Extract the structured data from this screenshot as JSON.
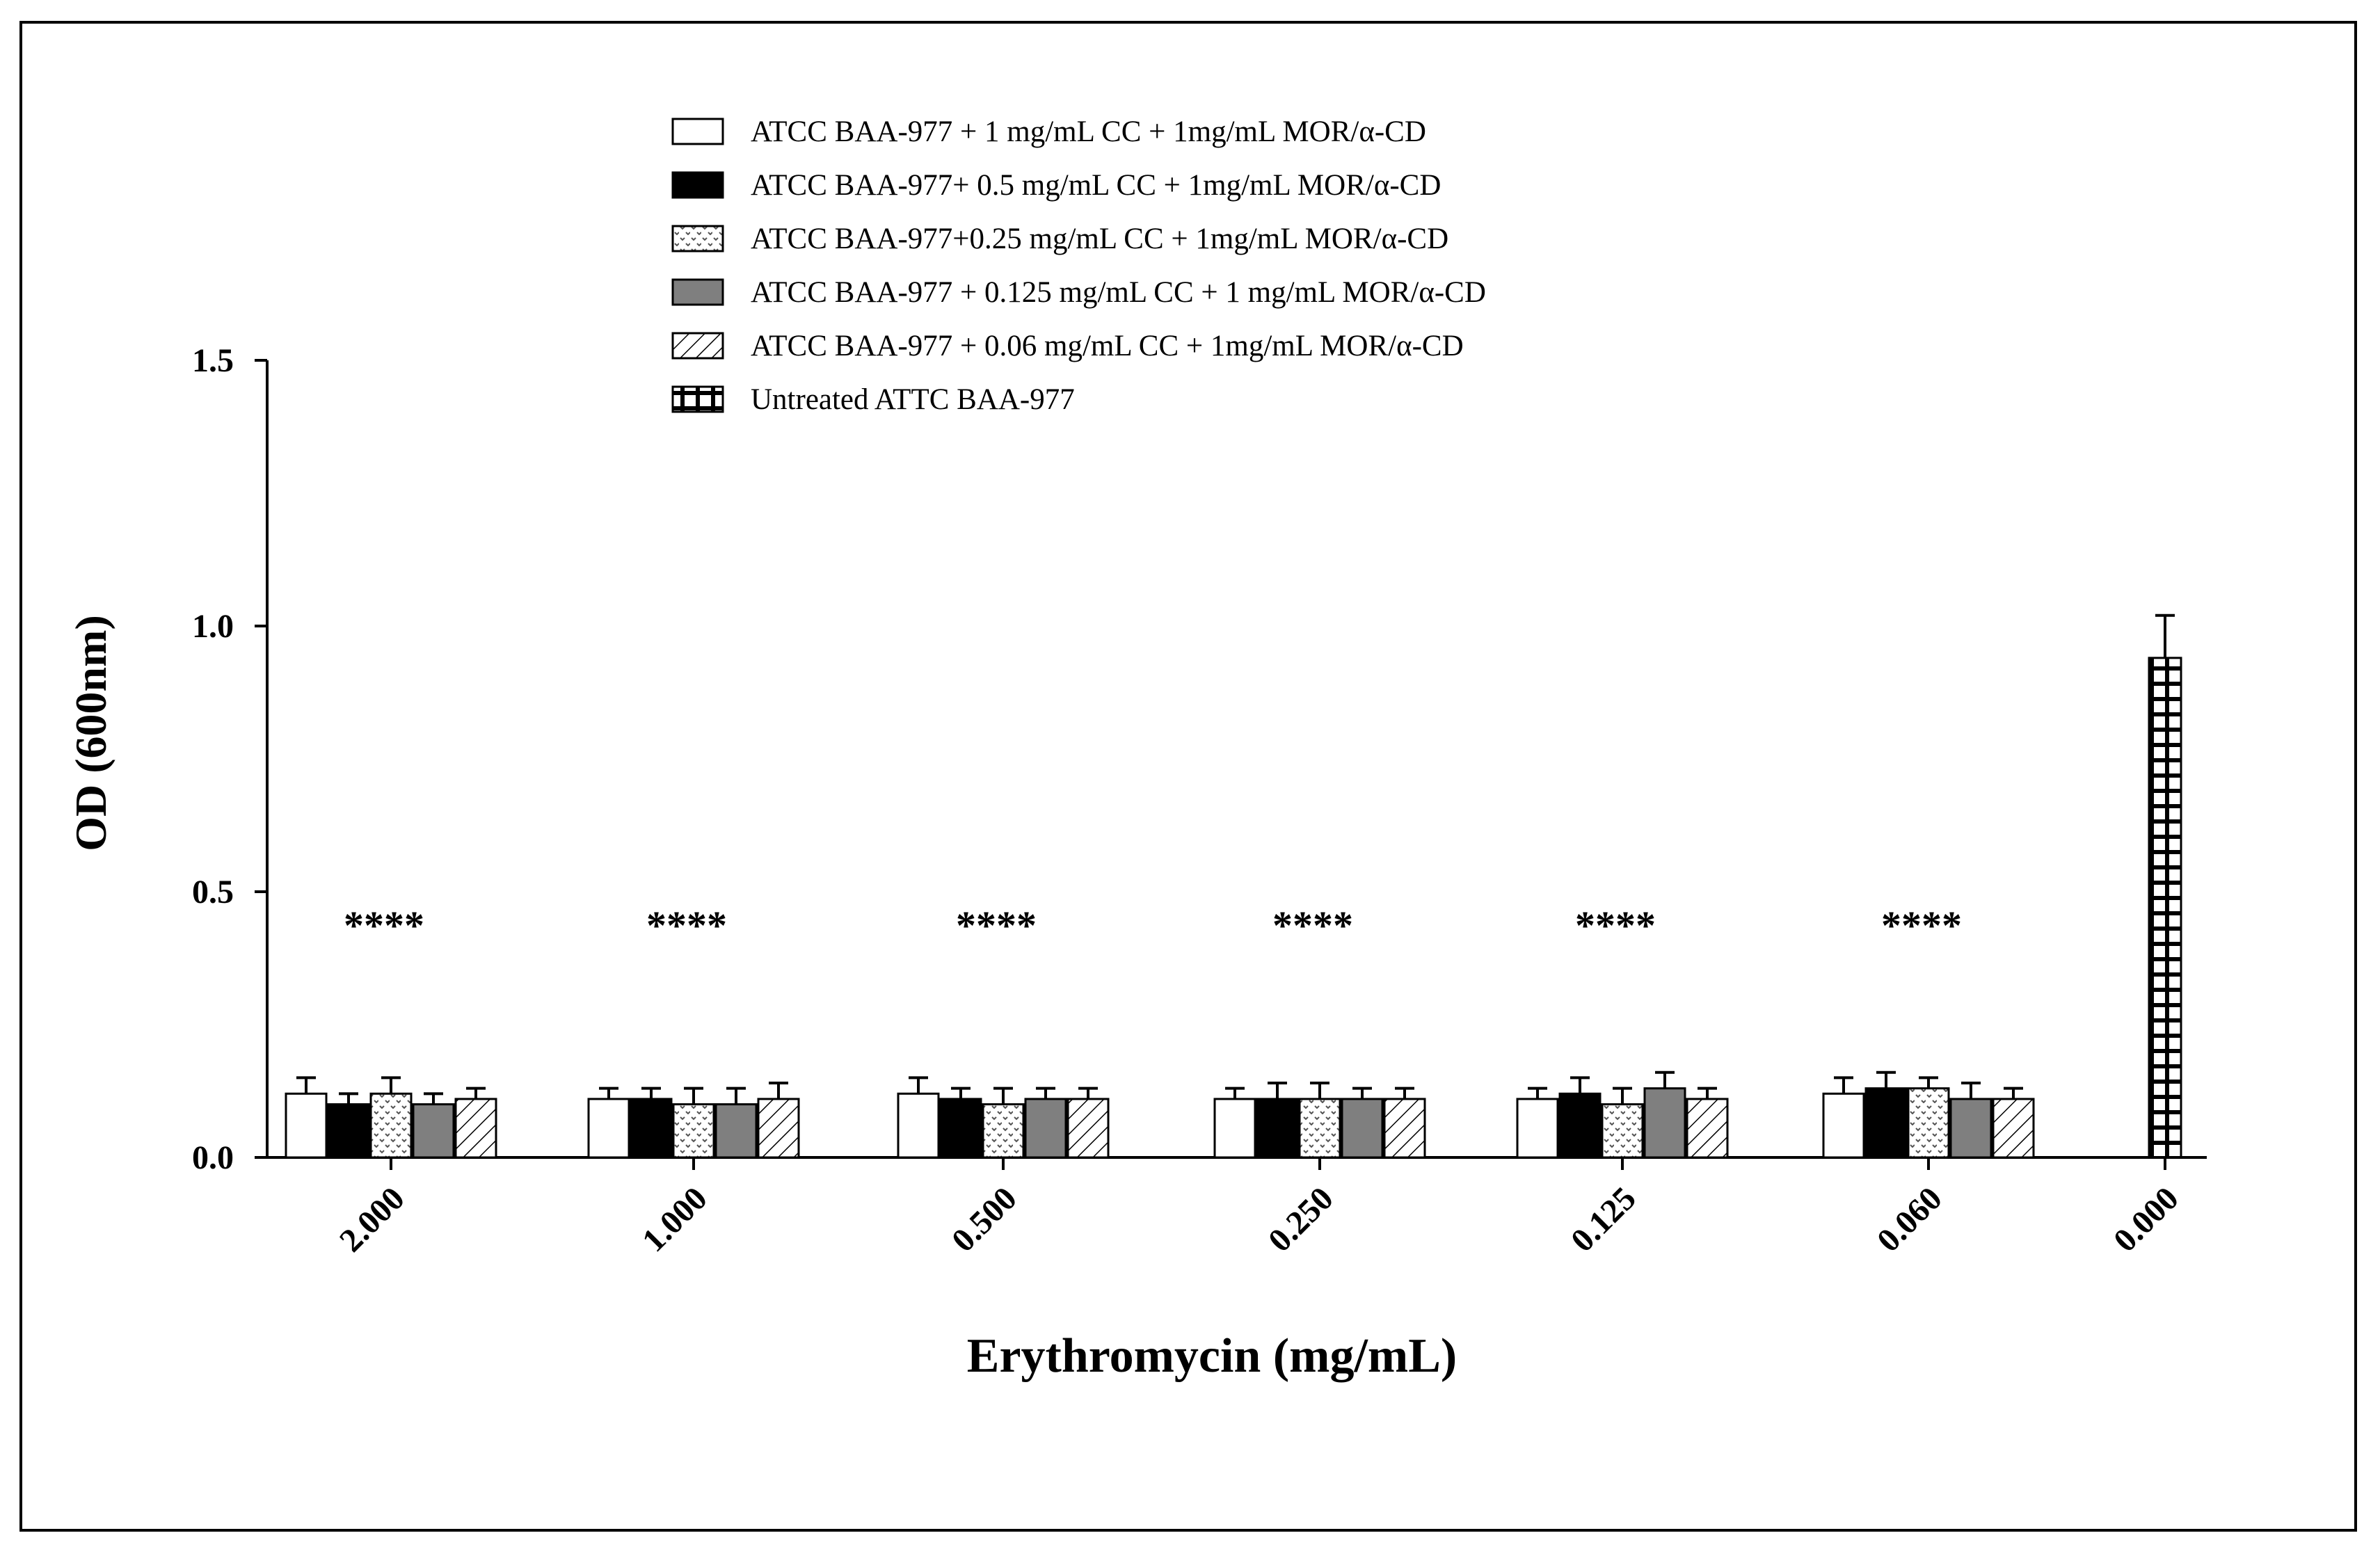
{
  "chart_data": {
    "type": "bar",
    "xlabel": "Erythromycin (mg/mL)",
    "ylabel": "OD (600nm)",
    "ylim": [
      0,
      1.5
    ],
    "yticks": [
      "0.0",
      "0.5",
      "1.0",
      "1.5"
    ],
    "categories": [
      "2.000",
      "1.000",
      "0.500",
      "0.250",
      "0.125",
      "0.060",
      "0.000"
    ],
    "significance": [
      "****",
      "****",
      "****",
      "****",
      "****",
      "****",
      ""
    ],
    "legend_position": "top-center",
    "series": [
      {
        "name": "ATCC BAA-977 + 1 mg/mL CC + 1mg/mL MOR/α-CD",
        "pattern": "white",
        "values": [
          0.12,
          0.11,
          0.12,
          0.11,
          0.11,
          0.12,
          null
        ],
        "errors": [
          0.03,
          0.02,
          0.03,
          0.02,
          0.02,
          0.03,
          null
        ]
      },
      {
        "name": "ATCC BAA-977+ 0.5 mg/mL CC + 1mg/mL MOR/α-CD",
        "pattern": "black",
        "values": [
          0.1,
          0.11,
          0.11,
          0.11,
          0.12,
          0.13,
          null
        ],
        "errors": [
          0.02,
          0.02,
          0.02,
          0.03,
          0.03,
          0.03,
          null
        ]
      },
      {
        "name": "ATCC BAA-977+0.25 mg/mL CC + 1mg/mL MOR/α-CD",
        "pattern": "dots",
        "values": [
          0.12,
          0.1,
          0.1,
          0.11,
          0.1,
          0.13,
          null
        ],
        "errors": [
          0.03,
          0.03,
          0.03,
          0.03,
          0.03,
          0.02,
          null
        ]
      },
      {
        "name": "ATCC BAA-977 + 0.125 mg/mL CC + 1 mg/mL MOR/α-CD",
        "pattern": "gray",
        "values": [
          0.1,
          0.1,
          0.11,
          0.11,
          0.13,
          0.11,
          null
        ],
        "errors": [
          0.02,
          0.03,
          0.02,
          0.02,
          0.03,
          0.03,
          null
        ]
      },
      {
        "name": "ATCC BAA-977  + 0.06 mg/mL CC + 1mg/mL MOR/α-CD",
        "pattern": "hatch",
        "values": [
          0.11,
          0.11,
          0.11,
          0.11,
          0.11,
          0.11,
          null
        ],
        "errors": [
          0.02,
          0.03,
          0.02,
          0.02,
          0.02,
          0.02,
          null
        ]
      },
      {
        "name": "Untreated ATTC BAA-977",
        "pattern": "checker",
        "values": [
          null,
          null,
          null,
          null,
          null,
          null,
          0.94
        ],
        "errors": [
          null,
          null,
          null,
          null,
          null,
          null,
          0.08
        ]
      }
    ]
  }
}
